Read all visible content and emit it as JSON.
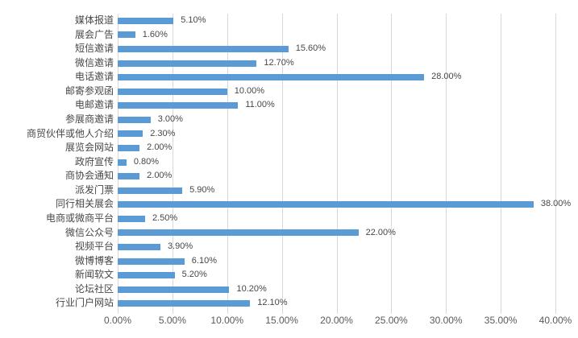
{
  "chart_data": {
    "type": "bar",
    "orientation": "horizontal",
    "title": "",
    "xlabel": "",
    "ylabel": "",
    "xlim": [
      0,
      40
    ],
    "grid": true,
    "legend": false,
    "categories": [
      "媒体报道",
      "展会广告",
      "短信邀请",
      "微信邀请",
      "电话邀请",
      "邮寄参观函",
      "电邮邀请",
      "参展商邀请",
      "商贸伙伴或他人介绍",
      "展览会网站",
      "政府宣传",
      "商协会通知",
      "派发门票",
      "同行相关展会",
      "电商或微商平台",
      "微信公众号",
      "视频平台",
      "微博博客",
      "新闻软文",
      "论坛社区",
      "行业门户网站"
    ],
    "values": [
      5.1,
      1.6,
      15.6,
      12.7,
      28.0,
      10.0,
      11.0,
      3.0,
      2.3,
      2.0,
      0.8,
      2.0,
      5.9,
      38.0,
      2.5,
      22.0,
      3.9,
      6.1,
      5.2,
      10.2,
      12.1
    ],
    "data_labels": [
      "5.10%",
      "1.60%",
      "15.60%",
      "12.70%",
      "28.00%",
      "10.00%",
      "11.00%",
      "3.00%",
      "2.30%",
      "2.00%",
      "0.80%",
      "2.00%",
      "5.90%",
      "38.00%",
      "2.50%",
      "22.00%",
      "3.90%",
      "6.10%",
      "5.20%",
      "10.20%",
      "12.10%"
    ],
    "x_ticks": [
      "0.00%",
      "5.00%",
      "10.00%",
      "15.00%",
      "20.00%",
      "25.00%",
      "30.00%",
      "35.00%",
      "40.00%"
    ],
    "colors": {
      "bar": "#5B9BD5",
      "gridline": "#D9D9D9",
      "category_text": "#474747",
      "value_text": "#474747",
      "axis_text": "#595959",
      "background": "#FFFFFF"
    }
  }
}
